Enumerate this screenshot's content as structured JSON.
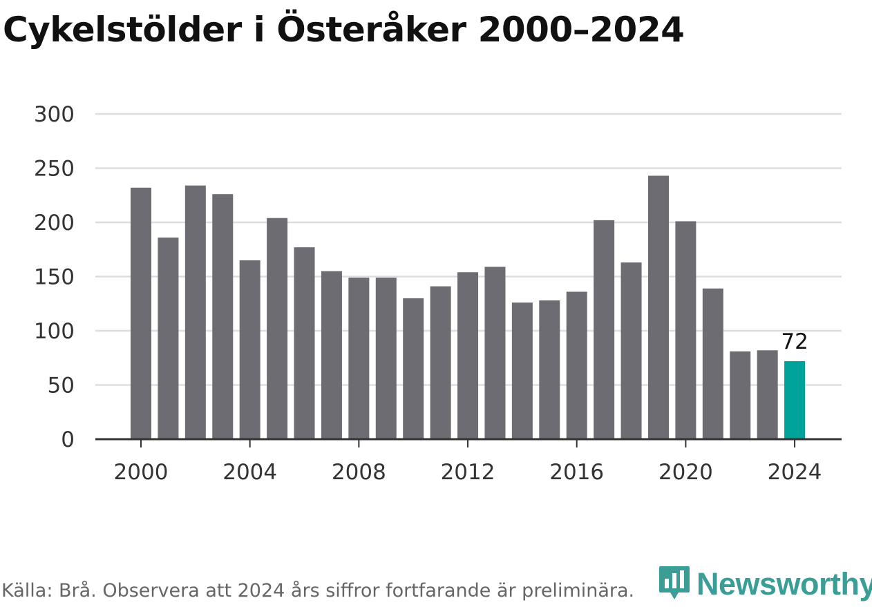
{
  "title": "Cykelstölder i Österåker 2000–2024",
  "source": "Källa: Brå. Observera att 2024 års siffror fortfarande är preliminära.",
  "brand": {
    "name": "Newsworthy",
    "color": "#3a9e96",
    "icon": "bar-chart-pin-icon"
  },
  "colors": {
    "bar": "#6d6c72",
    "highlight": "#00a39a",
    "grid": "#dddddd",
    "axis": "#333333"
  },
  "chart_data": {
    "type": "bar",
    "title": "Cykelstölder i Österåker 2000–2024",
    "xlabel": "",
    "ylabel": "",
    "categories": [
      2000,
      2001,
      2002,
      2003,
      2004,
      2005,
      2006,
      2007,
      2008,
      2009,
      2010,
      2011,
      2012,
      2013,
      2014,
      2015,
      2016,
      2017,
      2018,
      2019,
      2020,
      2021,
      2022,
      2023,
      2024
    ],
    "values": [
      232,
      186,
      234,
      226,
      165,
      204,
      177,
      155,
      149,
      149,
      130,
      141,
      154,
      159,
      126,
      128,
      136,
      202,
      163,
      243,
      201,
      139,
      81,
      82,
      72
    ],
    "x_ticks": [
      "2000",
      "2004",
      "2008",
      "2012",
      "2016",
      "2020",
      "2024"
    ],
    "y_ticks": [
      0,
      50,
      100,
      150,
      200,
      250,
      300
    ],
    "ylim": [
      0,
      300
    ],
    "highlight_index": 24,
    "data_labels": [
      {
        "index": 24,
        "text": "72"
      }
    ],
    "grid": true,
    "legend": "none"
  }
}
